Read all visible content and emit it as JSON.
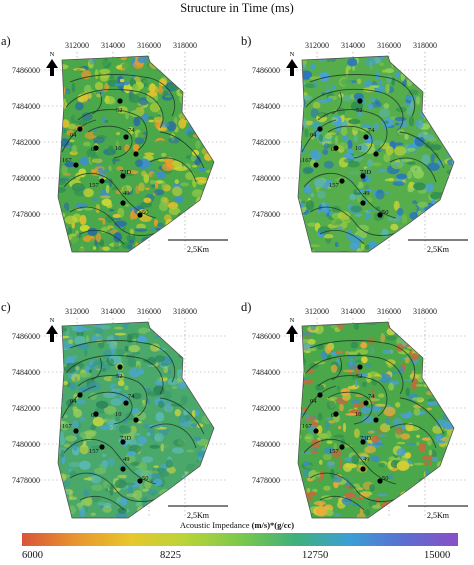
{
  "figure": {
    "title": "Structure in Time (ms)",
    "x_ticks": [
      "312000",
      "314000",
      "316000",
      "318000"
    ],
    "y_ticks": [
      "7486000",
      "7484000",
      "7482000",
      "7480000",
      "7478000"
    ],
    "scale_label": "2,5Km",
    "north_label": "N",
    "wells": [
      {
        "label": "52"
      },
      {
        "label": "04"
      },
      {
        "label": "10"
      },
      {
        "label": "03"
      },
      {
        "label": "74"
      },
      {
        "label": "167"
      },
      {
        "label": "73D"
      },
      {
        "label": "157"
      },
      {
        "label": "49"
      },
      {
        "label": "50"
      }
    ]
  },
  "panels": [
    {
      "letter": "a)",
      "palette": [
        "#2f8f52",
        "#4aa84a",
        "#7ec24a",
        "#a8cf3c",
        "#cbd534",
        "#e0c02c",
        "#e89a2c",
        "#3f8fc6",
        "#2a6f9e"
      ]
    },
    {
      "letter": "b)",
      "palette": [
        "#2f8f52",
        "#56ad4c",
        "#7ec24a",
        "#8ecf5a",
        "#5bb3a8",
        "#3f9fd0",
        "#4aa0d8",
        "#b9d13a",
        "#2a76b8"
      ]
    },
    {
      "letter": "c)",
      "palette": [
        "#3a9a6a",
        "#4aa86a",
        "#6fbd63",
        "#8fc95c",
        "#5ab8b0",
        "#4aa6cf",
        "#b8cf45",
        "#3a96a6",
        "#2e8a5a"
      ]
    },
    {
      "letter": "d)",
      "palette": [
        "#2f8f52",
        "#4aa84a",
        "#86c44c",
        "#b5d140",
        "#d6cd35",
        "#e7a93a",
        "#4aa0cc",
        "#3a90b8",
        "#c46a3a"
      ]
    }
  ],
  "colorbar": {
    "label_prefix": "Acoustic Impedance",
    "label_unit": "(m/s)*(g/cc)",
    "ticks": [
      "6000",
      "8225",
      "12750",
      "15000"
    ],
    "colors": [
      "#d9543a",
      "#e8962e",
      "#e6c72e",
      "#b8d43a",
      "#7dc84a",
      "#3fb07a",
      "#3c9fd4",
      "#5a6fd0",
      "#8a4fc8"
    ]
  }
}
